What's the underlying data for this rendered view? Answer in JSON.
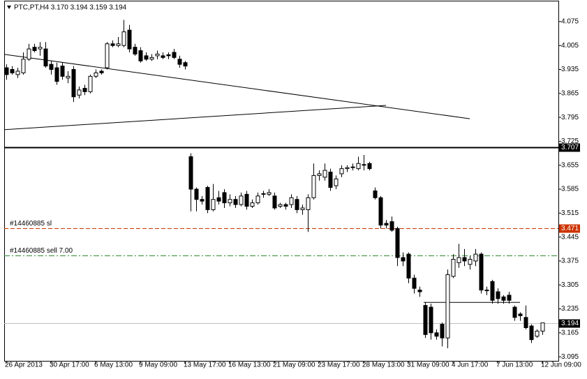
{
  "chart_data": {
    "type": "candlestick",
    "title": "PTC,PT,H4  3.170 3.194 3.159 3.194",
    "categories": [
      "26 Apr 2013",
      null,
      null,
      null,
      null,
      null,
      null,
      null,
      "30 Apr 17:00",
      null,
      null,
      null,
      null,
      null,
      null,
      null,
      "6 May 13:00",
      null,
      null,
      null,
      null,
      null,
      null,
      null,
      "9 May 09:00",
      null,
      null,
      null,
      null,
      null,
      null,
      null,
      "13 May 17:00",
      null,
      null,
      null,
      null,
      null,
      null,
      null,
      "16 May 13:00",
      null,
      null,
      null,
      null,
      null,
      null,
      null,
      "21 May 09:00",
      null,
      null,
      null,
      null,
      null,
      null,
      null,
      "23 May 17:00",
      null,
      null,
      null,
      null,
      null,
      null,
      null,
      "28 May 13:00",
      null,
      null,
      null,
      null,
      null,
      null,
      null,
      "31 May 09:00",
      null,
      null,
      null,
      null,
      null,
      null,
      null,
      "4 Jun 17:00",
      null,
      null,
      null,
      null,
      null,
      null,
      null,
      "7 Jun 13:00",
      null,
      null,
      null,
      null,
      null,
      null,
      null,
      "12 Jun 09:00"
    ],
    "open": [
      3.94,
      3.935,
      3.92,
      3.925,
      3.965,
      4.0,
      3.995,
      3.995,
      3.95,
      3.94,
      3.945,
      3.91,
      3.935,
      3.86,
      3.88,
      3.87,
      3.915,
      3.93,
      3.94,
      4.01,
      4.005,
      4.005,
      4.05,
      4.0,
      3.99,
      3.975,
      3.965,
      3.975,
      3.975,
      3.978,
      3.985,
      3.965,
      3.955,
      3.68,
      3.585,
      3.555,
      3.59,
      3.525,
      3.56,
      3.575,
      3.545,
      3.555,
      3.54,
      3.57,
      3.535,
      3.545,
      3.57,
      3.57,
      3.565,
      3.535,
      3.54,
      3.54,
      3.555,
      3.525,
      3.525,
      3.56,
      3.625,
      3.62,
      3.635,
      3.595,
      3.63,
      3.645,
      3.65,
      3.645,
      3.655,
      3.66,
      3.58,
      3.56,
      3.485,
      3.49,
      3.47,
      3.385,
      3.395,
      3.325,
      3.29,
      3.245,
      3.24,
      3.165,
      3.19,
      3.15,
      3.33,
      3.37,
      3.385,
      3.365,
      3.375,
      3.395,
      3.29,
      3.315,
      3.285,
      3.27,
      3.275,
      3.24,
      3.22,
      3.21,
      3.185,
      3.155,
      3.17
    ],
    "high": [
      3.95,
      3.945,
      3.94,
      3.985,
      4.01,
      4.01,
      4.015,
      4.015,
      3.96,
      3.955,
      3.955,
      3.93,
      3.945,
      3.885,
      3.89,
      3.92,
      3.935,
      3.935,
      4.015,
      4.02,
      4.03,
      4.08,
      4.065,
      4.01,
      4.0,
      3.985,
      3.98,
      3.99,
      3.985,
      3.985,
      3.995,
      3.975,
      3.96,
      3.69,
      3.59,
      3.565,
      3.595,
      3.6,
      3.58,
      3.585,
      3.57,
      3.565,
      3.575,
      3.58,
      3.555,
      3.575,
      3.58,
      3.585,
      3.575,
      3.545,
      3.545,
      3.57,
      3.565,
      3.54,
      3.57,
      3.66,
      3.64,
      3.66,
      3.645,
      3.625,
      3.655,
      3.655,
      3.66,
      3.68,
      3.685,
      3.665,
      3.59,
      3.565,
      3.495,
      3.505,
      3.475,
      3.4,
      3.4,
      3.335,
      3.3,
      3.255,
      3.25,
      3.175,
      3.195,
      3.35,
      3.395,
      3.425,
      3.41,
      3.39,
      3.41,
      3.4,
      3.3,
      3.32,
      3.295,
      3.275,
      3.285,
      3.245,
      3.225,
      3.245,
      3.19,
      3.175,
      3.194
    ],
    "low": [
      3.905,
      3.92,
      3.91,
      3.92,
      3.96,
      3.985,
      3.975,
      3.94,
      3.92,
      3.89,
      3.905,
      3.895,
      3.84,
      3.85,
      3.86,
      3.865,
      3.91,
      3.92,
      3.935,
      4.0,
      4.0,
      4.0,
      3.985,
      3.975,
      3.955,
      3.96,
      3.96,
      3.965,
      3.965,
      3.965,
      3.965,
      3.94,
      3.935,
      3.52,
      3.52,
      3.54,
      3.515,
      3.52,
      3.54,
      3.53,
      3.535,
      3.53,
      3.535,
      3.525,
      3.53,
      3.54,
      3.56,
      3.565,
      3.525,
      3.53,
      3.525,
      3.53,
      3.515,
      3.51,
      3.46,
      3.555,
      3.61,
      3.61,
      3.58,
      3.585,
      3.62,
      3.635,
      3.64,
      3.64,
      3.64,
      3.64,
      3.555,
      3.47,
      3.47,
      3.46,
      3.36,
      3.36,
      3.31,
      3.28,
      3.27,
      3.15,
      3.145,
      3.145,
      3.125,
      3.12,
      3.325,
      3.355,
      3.36,
      3.35,
      3.36,
      3.28,
      3.275,
      3.25,
      3.25,
      3.25,
      3.25,
      3.2,
      3.2,
      3.175,
      3.135,
      3.15,
      3.159
    ],
    "close": [
      3.92,
      3.925,
      3.93,
      3.965,
      3.995,
      3.99,
      4.0,
      3.945,
      3.935,
      3.9,
      3.915,
      3.915,
      3.855,
      3.875,
      3.87,
      3.915,
      3.925,
      3.925,
      4.01,
      4.005,
      4.01,
      4.045,
      3.995,
      3.98,
      3.96,
      3.965,
      3.97,
      3.98,
      3.97,
      3.975,
      3.97,
      3.95,
      3.945,
      3.585,
      3.555,
      3.55,
      3.525,
      3.555,
      3.55,
      3.545,
      3.555,
      3.54,
      3.565,
      3.535,
      3.545,
      3.565,
      3.572,
      3.575,
      3.53,
      3.54,
      3.535,
      3.56,
      3.525,
      3.53,
      3.56,
      3.625,
      3.63,
      3.64,
      3.59,
      3.615,
      3.645,
      3.648,
      3.648,
      3.66,
      3.657,
      3.645,
      3.56,
      3.48,
      3.48,
      3.465,
      3.385,
      3.375,
      3.325,
      3.295,
      3.285,
      3.16,
      3.165,
      3.155,
      3.15,
      3.335,
      3.38,
      3.385,
      3.375,
      3.38,
      3.395,
      3.29,
      3.288,
      3.26,
      3.265,
      3.26,
      3.26,
      3.21,
      3.215,
      3.18,
      3.145,
      3.17,
      3.194
    ],
    "ylim": [
      3.083,
      4.134
    ],
    "yticks": [
      4.075,
      4.005,
      3.935,
      3.865,
      3.795,
      3.725,
      3.655,
      3.585,
      3.515,
      3.445,
      3.375,
      3.305,
      3.235,
      3.165,
      3.095
    ],
    "hlines": [
      {
        "value": 3.707,
        "color": "#000000",
        "style": "solid",
        "tag": true
      },
      {
        "value": 3.471,
        "color": "#cc3300",
        "style": "dash",
        "tag": true,
        "name": "#14460885 sl"
      },
      {
        "value": 3.391,
        "color": "#2e8b2e",
        "style": "dashdot",
        "tag": false,
        "name": "#14460885 sell 7.00"
      },
      {
        "value": 3.194,
        "color": "#c0c0c0",
        "style": "solid",
        "tag": true
      }
    ],
    "lines": [
      {
        "x": [
          0,
          83
        ],
        "values": [
          3.979,
          3.791
        ],
        "color": "#000000"
      },
      {
        "x": [
          0,
          68
        ],
        "values": [
          3.759,
          3.83
        ],
        "color": "#000000"
      },
      {
        "x": [
          75,
          92
        ],
        "values": [
          3.254,
          3.254
        ],
        "color": "#000000"
      }
    ]
  }
}
